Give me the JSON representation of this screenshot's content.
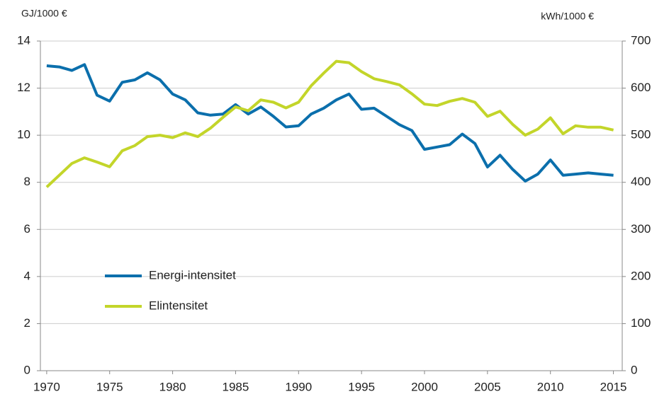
{
  "chart_data": {
    "type": "line",
    "y_label": "GJ/1000 €",
    "y2_label": "kWh/1000 €",
    "x": [
      1970,
      1971,
      1972,
      1973,
      1974,
      1975,
      1976,
      1977,
      1978,
      1979,
      1980,
      1981,
      1982,
      1983,
      1984,
      1985,
      1986,
      1987,
      1988,
      1989,
      1990,
      1991,
      1992,
      1993,
      1994,
      1995,
      1996,
      1997,
      1998,
      1999,
      2000,
      2001,
      2002,
      2003,
      2004,
      2005,
      2006,
      2007,
      2008,
      2009,
      2010,
      2011,
      2012,
      2013,
      2014,
      2015
    ],
    "series": [
      {
        "name": "Energi-intensitet",
        "color": "#0b6fac",
        "axis": "y",
        "values": [
          12.95,
          12.9,
          12.75,
          13.0,
          11.7,
          11.45,
          12.25,
          12.35,
          12.65,
          12.35,
          11.75,
          11.5,
          10.95,
          10.85,
          10.9,
          11.3,
          10.9,
          11.2,
          10.8,
          10.35,
          10.4,
          10.9,
          11.15,
          11.5,
          11.75,
          11.1,
          11.15,
          10.8,
          10.45,
          10.2,
          9.4,
          9.5,
          9.6,
          10.05,
          9.65,
          8.65,
          9.15,
          8.55,
          8.05,
          8.35,
          8.95,
          8.3,
          8.35,
          8.4,
          8.35,
          8.3
        ]
      },
      {
        "name": "Elintensitet",
        "color": "#c3d52a",
        "axis": "y2",
        "values": [
          390,
          415,
          440,
          452,
          443,
          433,
          467,
          478,
          497,
          500,
          495,
          505,
          497,
          515,
          538,
          560,
          552,
          575,
          570,
          558,
          570,
          605,
          632,
          657,
          654,
          635,
          620,
          614,
          607,
          588,
          566,
          563,
          572,
          578,
          570,
          540,
          551,
          523,
          500,
          513,
          537,
          503,
          520,
          517,
          517,
          511
        ]
      }
    ],
    "xlim": [
      1969.5,
      2015.7
    ],
    "xticks": [
      1970,
      1975,
      1980,
      1985,
      1990,
      1995,
      2000,
      2005,
      2010,
      2015
    ],
    "ylim": [
      0,
      14
    ],
    "yticks": [
      0,
      2,
      4,
      6,
      8,
      10,
      12,
      14
    ],
    "y2lim": [
      0,
      700
    ],
    "y2ticks": [
      0,
      100,
      200,
      300,
      400,
      500,
      600,
      700
    ],
    "grid": true,
    "legend": "left"
  }
}
